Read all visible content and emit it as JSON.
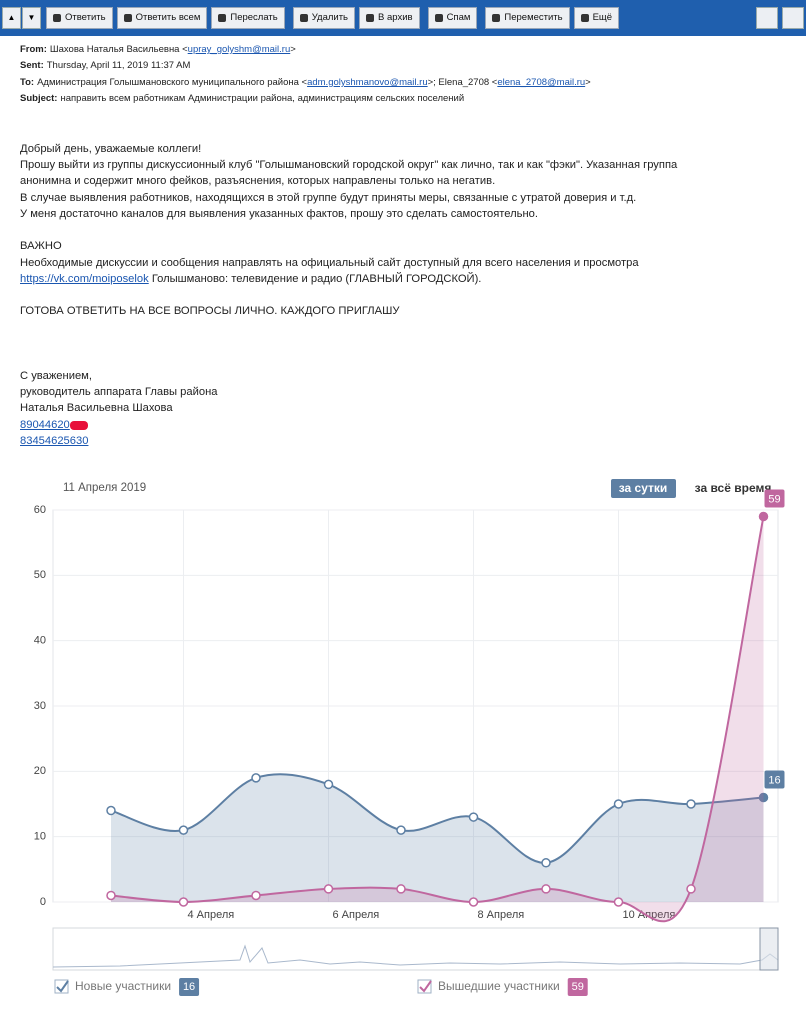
{
  "toolbar": {
    "buttons": [
      "Ответить",
      "Ответить всем",
      "Переслать",
      "Удалить",
      "В архив",
      "Спам",
      "Переместить",
      "Ещё"
    ]
  },
  "email": {
    "from": {
      "label": "From:",
      "name": "Шахова Наталья Васильевна <",
      "email": "upray_golyshm@mail.ru",
      "end": ">"
    },
    "sent": {
      "label": "Sent:",
      "value": "Thursday, April 11, 2019 11:37 AM"
    },
    "to": {
      "label": "To:",
      "name1": "Администрация Голышмановского муниципального района <",
      "email1": "adm.golyshmanovo@mail.ru",
      "mid": ">; Elena_2708 <",
      "email2": "elena_2708@mail.ru",
      "end": ">"
    },
    "subject": {
      "label": "Subject:",
      "value": "направить всем работникам Администрации района, администрациям сельских поселений"
    },
    "body": {
      "greeting": "Добрый день, уважаемые коллеги!",
      "p1": [
        "Прошу выйти из группы дискуссионный клуб \"Голышмановский городской округ\" как лично, так и как \"фэки\". Указанная группа",
        "анонимна и содержит много фейков, разъяснения,  которых направлены только на негатив.",
        "В случае выявления работников, находящихся в этой группе будут приняты меры, связанные с утратой доверия и т.д.",
        "У меня достаточно каналов для выявления указанных фактов, прошу это сделать самостоятельно."
      ],
      "important": "ВАЖНО",
      "p2": "Необходимые дискуссии и сообщения направлять на официальный сайт доступный для всего населения и просмотра",
      "link": "https://vk.com/moiposelok",
      "link_after": " Голышманово: телевидение и радио (ГЛАВНЫЙ ГОРОДСКОЙ).",
      "ready": "ГОТОВА ОТВЕТИТЬ НА ВСЕ ВОПРОСЫ ЛИЧНО. КАЖДОГО ПРИГЛАШУ",
      "signature": [
        "С уважением,",
        "руководитель аппарата Главы района",
        "Наталья Васильевна Шахова"
      ],
      "phone1": "89044620",
      "phone2": "83454625630"
    }
  },
  "chart_data": {
    "type": "line",
    "subtitle": "11 Апреля 2019",
    "tabs": [
      "за сутки",
      "за всё время"
    ],
    "x": [
      3,
      4,
      5,
      6,
      7,
      8,
      9,
      10,
      11,
      12
    ],
    "xlim": [
      2.2,
      12.2
    ],
    "xticks": [
      {
        "value": 4,
        "label": "4 Апреля"
      },
      {
        "value": 6,
        "label": "6 Апреля"
      },
      {
        "value": 8,
        "label": "8 Апреля"
      },
      {
        "value": 10,
        "label": "10 Апреля"
      }
    ],
    "ylim": [
      0,
      60
    ],
    "yticks": [
      0,
      10,
      20,
      30,
      40,
      50,
      60
    ],
    "grid": true,
    "series": [
      {
        "name": "Новые участники",
        "color": "#5d7fa3",
        "values": [
          14,
          11,
          19,
          18,
          11,
          13,
          6,
          15,
          15,
          16
        ]
      },
      {
        "name": "Вышедшие участники",
        "color": "#c0679f",
        "values": [
          1,
          0,
          1,
          2,
          2,
          0,
          2,
          0,
          2,
          59
        ]
      }
    ]
  }
}
